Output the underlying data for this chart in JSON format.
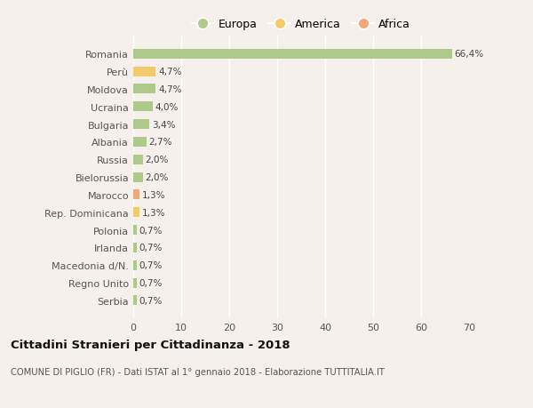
{
  "countries": [
    "Romania",
    "Perù",
    "Moldova",
    "Ucraina",
    "Bulgaria",
    "Albania",
    "Russia",
    "Bielorussia",
    "Marocco",
    "Rep. Dominicana",
    "Polonia",
    "Irlanda",
    "Macedonia d/N.",
    "Regno Unito",
    "Serbia"
  ],
  "values": [
    66.4,
    4.7,
    4.7,
    4.0,
    3.4,
    2.7,
    2.0,
    2.0,
    1.3,
    1.3,
    0.7,
    0.7,
    0.7,
    0.7,
    0.7
  ],
  "labels": [
    "66,4%",
    "4,7%",
    "4,7%",
    "4,0%",
    "3,4%",
    "2,7%",
    "2,0%",
    "2,0%",
    "1,3%",
    "1,3%",
    "0,7%",
    "0,7%",
    "0,7%",
    "0,7%",
    "0,7%"
  ],
  "continents": [
    "Europa",
    "America",
    "Europa",
    "Europa",
    "Europa",
    "Europa",
    "Europa",
    "Europa",
    "Africa",
    "America",
    "Europa",
    "Europa",
    "Europa",
    "Europa",
    "Europa"
  ],
  "colors": {
    "Europa": "#aeca8b",
    "America": "#f5cb6a",
    "Africa": "#f0a878"
  },
  "xlim": [
    0,
    70
  ],
  "xticks": [
    0,
    10,
    20,
    30,
    40,
    50,
    60,
    70
  ],
  "title": "Cittadini Stranieri per Cittadinanza - 2018",
  "subtitle": "COMUNE DI PIGLIO (FR) - Dati ISTAT al 1° gennaio 2018 - Elaborazione TUTTITALIA.IT",
  "background_color": "#f5f0eb",
  "plot_bg_color": "#f9f6f2",
  "grid_color": "#ffffff",
  "bar_height": 0.55,
  "figsize": [
    6.0,
    4.6
  ],
  "dpi": 100
}
